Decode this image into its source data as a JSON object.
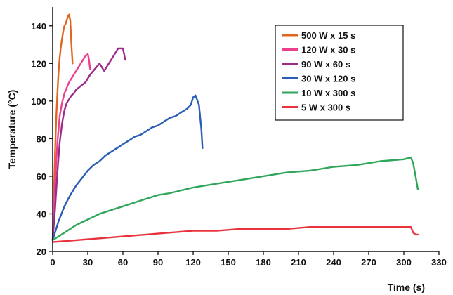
{
  "chart_data": {
    "type": "line",
    "title": "",
    "xlabel": "Time (s)",
    "ylabel": "Temperature (°C)",
    "xlim": [
      0,
      330
    ],
    "ylim": [
      20,
      150
    ],
    "xticks": [
      0,
      30,
      60,
      90,
      120,
      150,
      180,
      210,
      240,
      270,
      300,
      330
    ],
    "yticks": [
      20,
      40,
      60,
      80,
      100,
      120,
      140
    ],
    "grid": false,
    "legend_position": "top-right",
    "series": [
      {
        "name": "500 W x 15 s",
        "color": "#e0661f",
        "x": [
          0,
          1,
          2,
          3,
          4,
          5,
          6,
          7,
          8,
          9,
          10,
          11,
          12,
          13,
          14,
          15,
          16,
          17
        ],
        "y": [
          26,
          50,
          72,
          90,
          104,
          115,
          123,
          129,
          133,
          137,
          140,
          141,
          143,
          145,
          146,
          143,
          130,
          120
        ]
      },
      {
        "name": "120 W x 30 s",
        "color": "#ee3f8f",
        "x": [
          0,
          2,
          4,
          6,
          8,
          10,
          12,
          14,
          16,
          18,
          20,
          22,
          24,
          26,
          28,
          30,
          31,
          32
        ],
        "y": [
          26,
          55,
          78,
          92,
          99,
          104,
          107,
          110,
          112,
          114,
          116,
          118,
          120,
          122,
          124,
          125,
          122,
          117
        ]
      },
      {
        "name": "90 W x 60 s",
        "color": "#9c2b8a",
        "x": [
          0,
          2,
          4,
          6,
          8,
          10,
          12,
          14,
          16,
          18,
          20,
          24,
          28,
          32,
          36,
          40,
          44,
          48,
          52,
          56,
          60,
          62
        ],
        "y": [
          26,
          42,
          62,
          78,
          88,
          95,
          99,
          101,
          103,
          104,
          106,
          108,
          110,
          114,
          117,
          120,
          116,
          120,
          124,
          128,
          128,
          122
        ]
      },
      {
        "name": "30 W x 120 s",
        "color": "#2a5db5",
        "x": [
          0,
          5,
          10,
          15,
          20,
          25,
          30,
          35,
          40,
          45,
          50,
          55,
          60,
          65,
          70,
          75,
          80,
          85,
          90,
          95,
          100,
          105,
          110,
          115,
          118,
          120,
          122,
          125,
          127,
          128
        ],
        "y": [
          26,
          36,
          44,
          50,
          55,
          59,
          63,
          66,
          68,
          71,
          73,
          75,
          77,
          79,
          81,
          82,
          84,
          86,
          87,
          89,
          91,
          92,
          94,
          96,
          98,
          102,
          103,
          98,
          85,
          75
        ]
      },
      {
        "name": "10 W x 300 s",
        "color": "#2fa65a",
        "x": [
          0,
          10,
          20,
          30,
          40,
          50,
          60,
          70,
          80,
          90,
          100,
          120,
          140,
          160,
          180,
          200,
          220,
          240,
          260,
          280,
          300,
          306,
          308,
          310,
          312
        ],
        "y": [
          26,
          30,
          34,
          37,
          40,
          42,
          44,
          46,
          48,
          50,
          51,
          54,
          56,
          58,
          60,
          62,
          63,
          65,
          66,
          68,
          69,
          70,
          67,
          60,
          53
        ]
      },
      {
        "name": "5 W x 300 s",
        "color": "#e8333c",
        "x": [
          0,
          20,
          40,
          60,
          80,
          100,
          120,
          140,
          160,
          180,
          200,
          220,
          240,
          260,
          280,
          300,
          306,
          308,
          310,
          312
        ],
        "y": [
          25,
          26,
          27,
          28,
          29,
          30,
          31,
          31,
          32,
          32,
          32,
          33,
          33,
          33,
          33,
          33,
          33,
          30,
          29,
          29
        ]
      }
    ]
  }
}
